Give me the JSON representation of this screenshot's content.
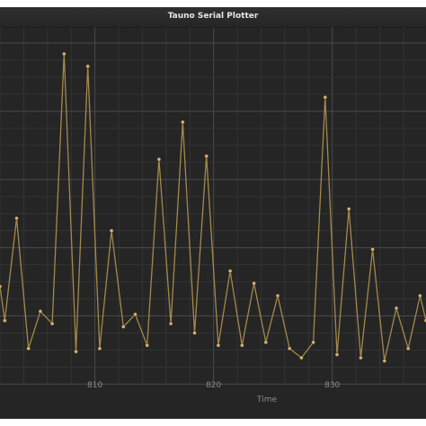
{
  "window": {
    "title": "Tauno Serial Plotter"
  },
  "colors": {
    "background": "#252525",
    "grid_minor": "#333333",
    "grid_major": "#4a4a4a",
    "series": "#a4894a",
    "marker": "#d9b46a",
    "text": "#8c8c8c"
  },
  "chart_data": {
    "type": "line",
    "xlabel": "Time",
    "ylabel": "",
    "title": "",
    "xlim": [
      802,
      837.9
    ],
    "ylim": [
      0,
      100
    ],
    "x_ticks": [
      810,
      820,
      830
    ],
    "grid": true,
    "legend": "none",
    "series": [
      {
        "x": [
          802,
          802.4,
          803.4,
          804.4,
          805.4,
          806.4,
          807.4,
          808.4,
          809.4,
          810.4,
          811.4,
          812.4,
          813.4,
          814.4,
          815.4,
          816.4,
          817.4,
          818.4,
          819.4,
          820.4,
          821.4,
          822.4,
          823.4,
          824.4,
          825.4,
          826.4,
          827.4,
          828.4,
          829.4,
          830.4,
          831.4,
          832.4,
          833.4,
          834.4,
          835.4,
          836.4,
          837.4,
          837.9
        ],
        "values": [
          25,
          14,
          47,
          5,
          17,
          13,
          100,
          4,
          96,
          5,
          43,
          12,
          16,
          6,
          66,
          13,
          78,
          10,
          67,
          6,
          30,
          6,
          26,
          7,
          22,
          5,
          2,
          7,
          86,
          3,
          50,
          2,
          37,
          1,
          18,
          5,
          22,
          14
        ]
      }
    ]
  }
}
